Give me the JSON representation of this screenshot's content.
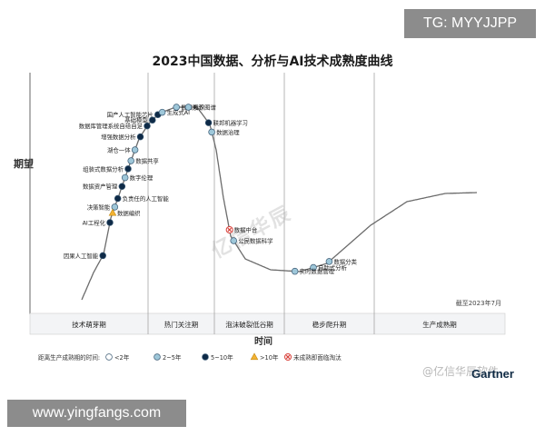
{
  "badges": {
    "top": "TG: MYYJJPP",
    "bottom": "www.yingfangs.com",
    "brand": "Gartner",
    "watermark": "@亿信华辰软件",
    "stamp": "亿信华辰"
  },
  "chart_data": {
    "type": "hype_cycle",
    "title": "2023中国数据、分析与AI技术成熟度曲线",
    "ylabel": "期望",
    "xlabel": "时间",
    "date_note": "截至2023年7月",
    "phases": [
      "技术萌芽期",
      "热门关注期",
      "泡沫破裂低谷期",
      "稳步爬升期",
      "生产成熟期"
    ],
    "legend": {
      "title": "距离生产成熟期的时间:",
      "items": [
        {
          "key": "lt2",
          "label": "<2年",
          "color": "#ffffff"
        },
        {
          "key": "2to5",
          "label": "2~5年",
          "color": "#9ec7d9"
        },
        {
          "key": "5to10",
          "label": "5~10年",
          "color": "#0e2a47"
        },
        {
          "key": "gt10",
          "label": ">10年",
          "color": "#f2b233"
        },
        {
          "key": "obsolete",
          "label": "未成熟即面临淘汰",
          "color": "#d8403a"
        }
      ]
    },
    "items": [
      {
        "label": "国产人工智能芯片",
        "t": 0.318,
        "cls": "5to10",
        "side": "left"
      },
      {
        "label": "生成式AI",
        "t": 0.324,
        "cls": "2to5",
        "side": "right"
      },
      {
        "label": "基础模型",
        "t": 0.308,
        "cls": "5to10",
        "side": "left"
      },
      {
        "label": "数据库管理系统自给自足",
        "t": 0.298,
        "cls": "5to10",
        "side": "left"
      },
      {
        "label": "数据素养",
        "t": 0.341,
        "cls": "2to5",
        "side": "right"
      },
      {
        "label": "知识图谱",
        "t": 0.352,
        "cls": "2to5",
        "side": "right"
      },
      {
        "label": "增强数据分析",
        "t": 0.283,
        "cls": "5to10",
        "side": "left"
      },
      {
        "label": "联邦机器学习",
        "t": 0.378,
        "cls": "5to10",
        "side": "right"
      },
      {
        "label": "湖仓一体",
        "t": 0.268,
        "cls": "2to5",
        "side": "left"
      },
      {
        "label": "数据治理",
        "t": 0.386,
        "cls": "2to5",
        "side": "right"
      },
      {
        "label": "数据共享",
        "t": 0.256,
        "cls": "2to5",
        "side": "right"
      },
      {
        "label": "组装式数据分析",
        "t": 0.247,
        "cls": "5to10",
        "side": "left"
      },
      {
        "label": "数字伦理",
        "t": 0.237,
        "cls": "2to5",
        "side": "right"
      },
      {
        "label": "数据资产管理",
        "t": 0.227,
        "cls": "5to10",
        "side": "left"
      },
      {
        "label": "负责任的人工智能",
        "t": 0.213,
        "cls": "5to10",
        "side": "right"
      },
      {
        "label": "决策智能",
        "t": 0.203,
        "cls": "2to5",
        "side": "left"
      },
      {
        "label": "数据编织",
        "t": 0.196,
        "cls": "gt10",
        "side": "right"
      },
      {
        "label": "AI工程化",
        "t": 0.185,
        "cls": "5to10",
        "side": "left"
      },
      {
        "label": "因果人工智能",
        "t": 0.145,
        "cls": "5to10",
        "side": "left"
      },
      {
        "label": "数据中台",
        "t": 0.455,
        "cls": "obsolete",
        "side": "right"
      },
      {
        "label": "公民数据科学",
        "t": 0.468,
        "cls": "2to5",
        "side": "right"
      },
      {
        "label": "数据分类",
        "t": 0.603,
        "cls": "2to5",
        "side": "right"
      },
      {
        "label": "自助式分析",
        "t": 0.585,
        "cls": "2to5",
        "side": "right"
      },
      {
        "label": "实时数据管理",
        "t": 0.565,
        "cls": "2to5",
        "side": "right"
      }
    ]
  }
}
